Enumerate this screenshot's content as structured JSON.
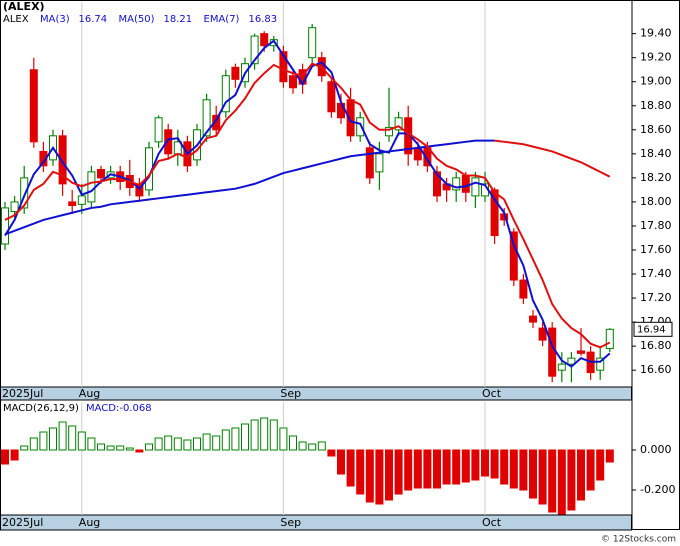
{
  "chart_data": [
    {
      "type": "candlestick",
      "title": "(ALEX)",
      "candles": {
        "name": "ALEX",
        "up_color": "#008000",
        "down_color": "#e00000",
        "open": [
          17.65,
          17.92,
          17.95,
          19.1,
          18.42,
          18.35,
          18.55,
          18.0,
          17.98,
          18.0,
          18.27,
          18.2,
          18.25,
          18.22,
          18.15,
          18.1,
          18.5,
          18.6,
          18.4,
          18.5,
          18.35,
          18.55,
          18.72,
          18.75,
          19.12,
          19.0,
          19.15,
          19.4,
          19.3,
          19.25,
          19.05,
          19.1,
          19.2,
          19.2,
          19.0,
          18.82,
          18.85,
          18.55,
          18.45,
          18.25,
          18.55,
          18.6,
          18.7,
          18.45,
          18.45,
          18.25,
          18.15,
          18.1,
          18.22,
          18.05,
          18.05,
          18.1,
          17.9,
          17.75,
          17.35,
          17.05,
          16.95,
          16.95,
          16.6,
          16.65,
          16.76,
          16.75,
          16.6,
          16.78
        ],
        "high": [
          18.0,
          18.05,
          18.3,
          19.2,
          18.5,
          18.6,
          18.6,
          18.1,
          18.15,
          18.3,
          18.3,
          18.3,
          18.3,
          18.35,
          18.2,
          18.5,
          18.72,
          18.65,
          18.6,
          18.55,
          18.65,
          18.9,
          18.8,
          19.1,
          19.15,
          19.2,
          19.4,
          19.42,
          19.38,
          19.3,
          19.1,
          19.15,
          19.48,
          19.25,
          19.02,
          18.9,
          18.95,
          18.75,
          18.5,
          18.5,
          18.95,
          18.75,
          18.8,
          18.5,
          18.5,
          18.3,
          18.2,
          18.25,
          18.25,
          18.25,
          18.25,
          18.12,
          17.95,
          17.78,
          17.4,
          17.1,
          17.0,
          17.0,
          16.75,
          16.75,
          16.95,
          16.8,
          16.8,
          16.95
        ],
        "low": [
          17.6,
          17.85,
          17.9,
          18.45,
          18.25,
          18.3,
          18.05,
          17.9,
          17.9,
          17.95,
          18.15,
          18.15,
          18.1,
          18.05,
          18.0,
          18.05,
          18.45,
          18.35,
          18.3,
          18.25,
          18.3,
          18.5,
          18.55,
          18.7,
          18.95,
          18.95,
          19.1,
          19.25,
          19.25,
          18.95,
          18.9,
          18.9,
          19.15,
          19.0,
          18.7,
          18.65,
          18.5,
          18.5,
          18.15,
          18.1,
          18.5,
          18.55,
          18.3,
          18.3,
          18.25,
          18.0,
          18.0,
          18.0,
          18.0,
          17.95,
          18.0,
          17.65,
          17.8,
          17.3,
          17.15,
          16.95,
          16.8,
          16.5,
          16.5,
          16.5,
          16.72,
          16.52,
          16.52,
          16.75
        ],
        "close": [
          17.95,
          18.0,
          18.2,
          18.5,
          18.3,
          18.55,
          18.15,
          17.97,
          18.05,
          18.25,
          18.2,
          18.25,
          18.17,
          18.12,
          18.05,
          18.45,
          18.7,
          18.4,
          18.5,
          18.3,
          18.6,
          18.85,
          18.6,
          19.05,
          19.02,
          19.15,
          19.38,
          19.3,
          19.35,
          19.0,
          18.95,
          18.98,
          19.45,
          19.05,
          18.75,
          18.7,
          18.55,
          18.7,
          18.2,
          18.4,
          18.62,
          18.7,
          18.4,
          18.35,
          18.3,
          18.05,
          18.1,
          18.2,
          18.08,
          18.2,
          18.15,
          17.72,
          17.85,
          17.35,
          17.2,
          17.0,
          16.85,
          16.55,
          16.65,
          16.7,
          16.74,
          16.58,
          16.7,
          16.94
        ]
      },
      "series": [
        {
          "name": "MA(3)",
          "color": "#1010d0",
          "width": 2,
          "values": [
            17.72,
            17.85,
            18.05,
            18.23,
            18.33,
            18.45,
            18.33,
            18.22,
            18.06,
            18.09,
            18.17,
            18.23,
            18.21,
            18.18,
            18.11,
            18.21,
            18.4,
            18.52,
            18.53,
            18.4,
            18.47,
            18.58,
            18.68,
            18.83,
            18.89,
            19.07,
            19.18,
            19.28,
            19.34,
            19.22,
            19.1,
            18.98,
            19.13,
            19.16,
            19.08,
            18.83,
            18.67,
            18.65,
            18.48,
            18.43,
            18.41,
            18.57,
            18.57,
            18.48,
            18.35,
            18.23,
            18.15,
            18.12,
            18.13,
            18.16,
            18.14,
            18.02,
            17.91,
            17.64,
            17.47,
            17.18,
            17.02,
            16.8,
            16.68,
            16.63,
            16.7,
            16.67,
            16.67,
            16.74
          ]
        },
        {
          "name": "MA(50)",
          "color": "#1010d0",
          "falling_color": "#e01010",
          "width": 2,
          "values": [
            17.73,
            17.76,
            17.79,
            17.82,
            17.85,
            17.87,
            17.89,
            17.91,
            17.93,
            17.95,
            17.96,
            17.98,
            17.99,
            18.0,
            18.01,
            18.02,
            18.03,
            18.04,
            18.05,
            18.06,
            18.07,
            18.08,
            18.09,
            18.1,
            18.11,
            18.13,
            18.15,
            18.18,
            18.21,
            18.24,
            18.26,
            18.28,
            18.3,
            18.32,
            18.34,
            18.36,
            18.38,
            18.39,
            18.4,
            18.41,
            18.42,
            18.43,
            18.44,
            18.45,
            18.46,
            18.47,
            18.48,
            18.49,
            18.5,
            18.51,
            18.51,
            18.51,
            18.5,
            18.49,
            18.48,
            18.46,
            18.44,
            18.42,
            18.39,
            18.36,
            18.33,
            18.29,
            18.25,
            18.21
          ]
        },
        {
          "name": "EMA(7)",
          "color": "#e01010",
          "width": 2,
          "values": [
            17.85,
            17.89,
            17.97,
            18.1,
            18.15,
            18.25,
            18.22,
            18.16,
            18.13,
            18.16,
            18.17,
            18.19,
            18.19,
            18.17,
            18.14,
            18.22,
            18.34,
            18.36,
            18.4,
            18.37,
            18.43,
            18.53,
            18.55,
            18.68,
            18.76,
            18.86,
            18.99,
            19.07,
            19.14,
            19.1,
            19.07,
            19.05,
            19.15,
            19.12,
            19.03,
            18.95,
            18.85,
            18.81,
            18.66,
            18.6,
            18.6,
            18.63,
            18.57,
            18.52,
            18.46,
            18.36,
            18.3,
            18.27,
            18.22,
            18.22,
            18.2,
            18.08,
            18.02,
            17.85,
            17.69,
            17.52,
            17.35,
            17.15,
            17.03,
            16.95,
            16.9,
            16.82,
            16.79,
            16.83
          ]
        }
      ],
      "ylim": [
        16.46,
        19.68
      ],
      "yticks": [
        {
          "value": 16.6,
          "label": "16.60"
        },
        {
          "value": 16.8,
          "label": "16.80"
        },
        {
          "value": 17.0,
          "label": "17.00"
        },
        {
          "value": 17.2,
          "label": "17.20"
        },
        {
          "value": 17.4,
          "label": "17.40"
        },
        {
          "value": 17.6,
          "label": "17.60"
        },
        {
          "value": 17.8,
          "label": "17.80"
        },
        {
          "value": 18.0,
          "label": "18.00"
        },
        {
          "value": 18.2,
          "label": "18.20"
        },
        {
          "value": 18.4,
          "label": "18.40"
        },
        {
          "value": 18.6,
          "label": "18.60"
        },
        {
          "value": 18.8,
          "label": "18.80"
        },
        {
          "value": 19.0,
          "label": "19.00"
        },
        {
          "value": 19.2,
          "label": "19.20"
        },
        {
          "value": 19.4,
          "label": "19.40"
        }
      ],
      "xticks": [
        {
          "value": 0,
          "label": "2025Jul"
        },
        {
          "value": 8,
          "label": "Aug"
        },
        {
          "value": 29,
          "label": "Sep"
        },
        {
          "value": 50,
          "label": "Oct"
        }
      ]
    },
    {
      "type": "bar",
      "legend": [
        "MACD(26,12,9)",
        "MACD:-0.068"
      ],
      "up_color": "#008000",
      "down_color": "#e00000",
      "values": [
        -0.07,
        -0.05,
        0.02,
        0.06,
        0.09,
        0.11,
        0.14,
        0.12,
        0.09,
        0.06,
        0.03,
        0.02,
        0.02,
        0.01,
        -0.01,
        0.03,
        0.06,
        0.07,
        0.06,
        0.05,
        0.06,
        0.08,
        0.07,
        0.1,
        0.11,
        0.13,
        0.15,
        0.16,
        0.15,
        0.11,
        0.07,
        0.04,
        0.03,
        0.04,
        -0.03,
        -0.12,
        -0.18,
        -0.22,
        -0.26,
        -0.27,
        -0.25,
        -0.22,
        -0.2,
        -0.19,
        -0.19,
        -0.19,
        -0.17,
        -0.17,
        -0.16,
        -0.15,
        -0.13,
        -0.14,
        -0.17,
        -0.19,
        -0.2,
        -0.24,
        -0.27,
        -0.31,
        -0.32,
        -0.3,
        -0.25,
        -0.2,
        -0.15,
        -0.06
      ],
      "ylim": [
        -0.325,
        0.25
      ],
      "yticks": [
        {
          "value": 0,
          "label": "0.000"
        },
        {
          "value": -0.2,
          "label": "-0.200"
        }
      ],
      "xticks": [
        {
          "value": 0,
          "label": "2025Jul"
        },
        {
          "value": 8,
          "label": "Aug"
        },
        {
          "value": 29,
          "label": "Sep"
        },
        {
          "value": 50,
          "label": "Oct"
        }
      ]
    }
  ],
  "watermark": "© 12Stocks.com"
}
